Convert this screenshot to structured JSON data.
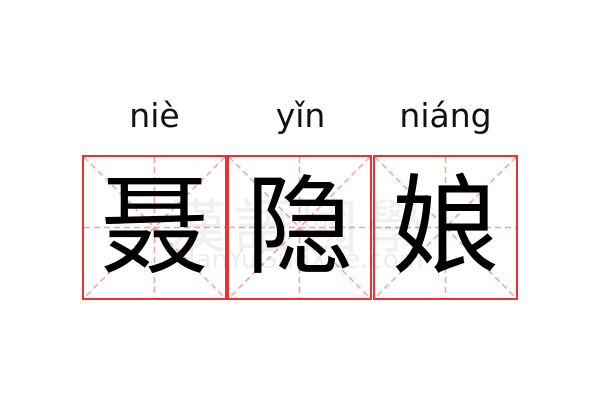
{
  "characters": [
    {
      "pinyin": "niè",
      "hanzi": "聂"
    },
    {
      "pinyin": "yǐn",
      "hanzi": "隐"
    },
    {
      "pinyin": "niáng",
      "hanzi": "娘"
    }
  ],
  "watermark": {
    "text": "漢語國學",
    "url": "HanYuGuoXue.com"
  },
  "colors": {
    "grid_border": "#f03030",
    "guide_lines": "#f5a0a0",
    "text": "#000000"
  }
}
